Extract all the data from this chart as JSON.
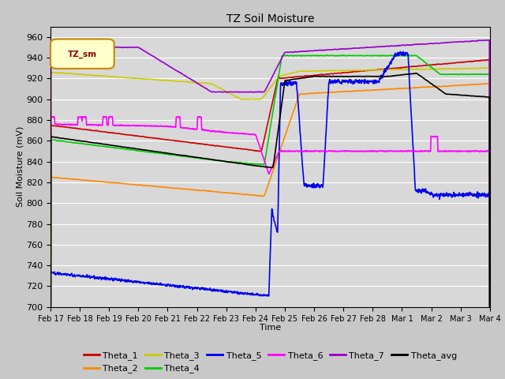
{
  "title": "TZ Soil Moisture",
  "xlabel": "Time",
  "ylabel": "Soil Moisture (mV)",
  "ylim": [
    700,
    970
  ],
  "yticks": [
    700,
    720,
    740,
    760,
    780,
    800,
    820,
    840,
    860,
    880,
    900,
    920,
    940,
    960
  ],
  "legend_label": "TZ_sm",
  "bg_color": "#c8c8c8",
  "plot_bg_color": "#d8d8d8",
  "colors": {
    "Theta_1": "#cc0000",
    "Theta_2": "#ff8800",
    "Theta_3": "#cccc00",
    "Theta_4": "#00cc00",
    "Theta_5": "#0000ee",
    "Theta_6": "#ff00ff",
    "Theta_7": "#9900cc",
    "Theta_avg": "#000000"
  },
  "date_labels": [
    "Feb 17",
    "Feb 18",
    "Feb 19",
    "Feb 20",
    "Feb 21",
    "Feb 22",
    "Feb 23",
    "Feb 24",
    "Feb 25",
    "Feb 26",
    "Feb 27",
    "Feb 28",
    "Mar 1",
    "Mar 2",
    "Mar 3",
    "Mar 4"
  ],
  "figsize": [
    6.4,
    4.8
  ],
  "dpi": 100
}
